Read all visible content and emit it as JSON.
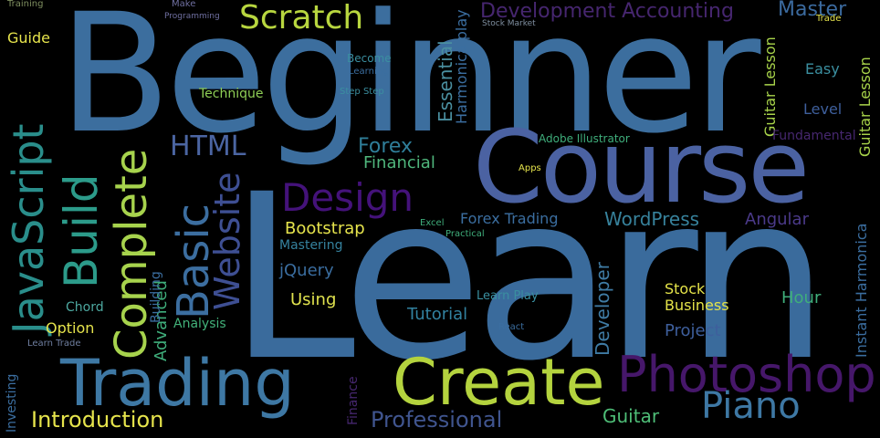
{
  "wordcloud": {
    "palette": {
      "blue": "#3b6ea0",
      "steel": "#4a7fae",
      "indigo": "#4c5fa0",
      "teal": "#2b8f8e",
      "green": "#3fae7b",
      "lime": "#a8d44a",
      "yellow": "#e7e54a",
      "purple": "#4b1f6f",
      "grey": "#7f8fa0"
    },
    "words": [
      {
        "id": "beginner",
        "text": "Beginner",
        "color": "#3c6e9e"
      },
      {
        "id": "learn",
        "text": "Learn",
        "color": "#3a6b9c"
      },
      {
        "id": "course",
        "text": "Course",
        "color": "#4b62a2"
      },
      {
        "id": "create",
        "text": "Create",
        "color": "#b4d33e"
      },
      {
        "id": "trading",
        "text": "Trading",
        "color": "#3e78a4"
      },
      {
        "id": "photoshop",
        "text": "Photoshop",
        "color": "#46176a"
      },
      {
        "id": "design",
        "text": "Design",
        "color": "#44127a"
      },
      {
        "id": "complete",
        "text": "Complete",
        "color": "#a7d34d"
      },
      {
        "id": "build",
        "text": "Build",
        "color": "#2c9b8a"
      },
      {
        "id": "javascript",
        "text": "JavaScript",
        "color": "#2a8e8b"
      },
      {
        "id": "basic",
        "text": "Basic",
        "color": "#3c6ea0"
      },
      {
        "id": "website",
        "text": "Website",
        "color": "#3e4f93"
      },
      {
        "id": "scratch",
        "text": "Scratch",
        "color": "#b8d63f"
      },
      {
        "id": "development-accounting",
        "text": "Development Accounting",
        "color": "#46266f"
      },
      {
        "id": "master",
        "text": "Master",
        "color": "#3b6a9e"
      },
      {
        "id": "html",
        "text": "HTML",
        "color": "#4b65a2"
      },
      {
        "id": "forex",
        "text": "Forex",
        "color": "#2f7e99"
      },
      {
        "id": "financial",
        "text": "Financial",
        "color": "#4fb67c"
      },
      {
        "id": "bootstrap",
        "text": "Bootstrap",
        "color": "#e6e44c"
      },
      {
        "id": "wordpress",
        "text": "WordPress",
        "color": "#37829c"
      },
      {
        "id": "forex-trading",
        "text": "Forex Trading",
        "color": "#3b6ea0"
      },
      {
        "id": "angular",
        "text": "Angular",
        "color": "#4b3a8a"
      },
      {
        "id": "piano",
        "text": "Piano",
        "color": "#3e78a4"
      },
      {
        "id": "guitar",
        "text": "Guitar",
        "color": "#4ebd77"
      },
      {
        "id": "professional",
        "text": "Professional",
        "color": "#40558f"
      },
      {
        "id": "introduction",
        "text": "Introduction",
        "color": "#e6e44c"
      },
      {
        "id": "tutorial",
        "text": "Tutorial",
        "color": "#3282a0"
      },
      {
        "id": "using",
        "text": "Using",
        "color": "#e0e24e"
      },
      {
        "id": "jquery",
        "text": "jQuery",
        "color": "#3a6d9f"
      },
      {
        "id": "mastering",
        "text": "Mastering",
        "color": "#35829e"
      },
      {
        "id": "stock-business",
        "text": "Stock Business",
        "color": "#e4e349"
      },
      {
        "id": "hour",
        "text": "Hour",
        "color": "#3fae7b"
      },
      {
        "id": "project",
        "text": "Project",
        "color": "#3e5f9c"
      },
      {
        "id": "developer",
        "text": "Developer",
        "color": "#3f7ba4"
      },
      {
        "id": "learn-play",
        "text": "Learn Play",
        "color": "#3a8fa0"
      },
      {
        "id": "guide",
        "text": "Guide",
        "color": "#e6e44c"
      },
      {
        "id": "option",
        "text": "Option",
        "color": "#e6e44c"
      },
      {
        "id": "chord",
        "text": "Chord",
        "color": "#4da8a0"
      },
      {
        "id": "analysis",
        "text": "Analysis",
        "color": "#42b27a"
      },
      {
        "id": "advanced",
        "text": "Advanced",
        "color": "#3fae7b"
      },
      {
        "id": "technique",
        "text": "Technique",
        "color": "#8fcf56"
      },
      {
        "id": "essential",
        "text": "Essential",
        "color": "#4a8fa0"
      },
      {
        "id": "easy",
        "text": "Easy",
        "color": "#3b8fa0"
      },
      {
        "id": "level",
        "text": "Level",
        "color": "#3e5f9c"
      },
      {
        "id": "illustrator",
        "text": "Illustrator",
        "color": "#e6e44c"
      },
      {
        "id": "fundamental",
        "text": "Fundamental",
        "color": "#46276f"
      },
      {
        "id": "guitar-lesson",
        "text": "Guitar Lesson",
        "color": "#a8d44a"
      },
      {
        "id": "instant-harmonica",
        "text": "Instant Harmonica",
        "color": "#3b6ea0"
      },
      {
        "id": "adobe-illustrator",
        "text": "Adobe Illustrator",
        "color": "#3fae7b"
      },
      {
        "id": "harmonica-play",
        "text": "Harmonica play",
        "color": "#3b6ea0"
      },
      {
        "id": "become",
        "text": "Become",
        "color": "#3b8fa0"
      },
      {
        "id": "learning",
        "text": "Learning",
        "color": "#3b6ea0"
      },
      {
        "id": "step-step",
        "text": "Step Step",
        "color": "#3b8fa0"
      },
      {
        "id": "training",
        "text": "Training",
        "color": "#7f8f60"
      },
      {
        "id": "make",
        "text": "Make",
        "color": "#6f6fa0"
      },
      {
        "id": "programming",
        "text": "Programming",
        "color": "#6f6fa0"
      },
      {
        "id": "investing",
        "text": "Investing",
        "color": "#3b6ea0"
      },
      {
        "id": "learn-trade",
        "text": "Learn Trade",
        "color": "#6f7fa0"
      },
      {
        "id": "building",
        "text": "Building",
        "color": "#3b6ea0"
      },
      {
        "id": "finance",
        "text": "Finance",
        "color": "#46276f"
      },
      {
        "id": "apps",
        "text": "Apps",
        "color": "#e6e44c"
      },
      {
        "id": "excel",
        "text": "Excel",
        "color": "#3fae7b"
      },
      {
        "id": "practical",
        "text": "Practical",
        "color": "#3fae7b"
      },
      {
        "id": "react",
        "text": "React",
        "color": "#3b6ea0"
      },
      {
        "id": "trade",
        "text": "Trade",
        "color": "#e6e44c"
      },
      {
        "id": "stock-market",
        "text": "Stock Market",
        "color": "#7f8fa0"
      }
    ]
  }
}
